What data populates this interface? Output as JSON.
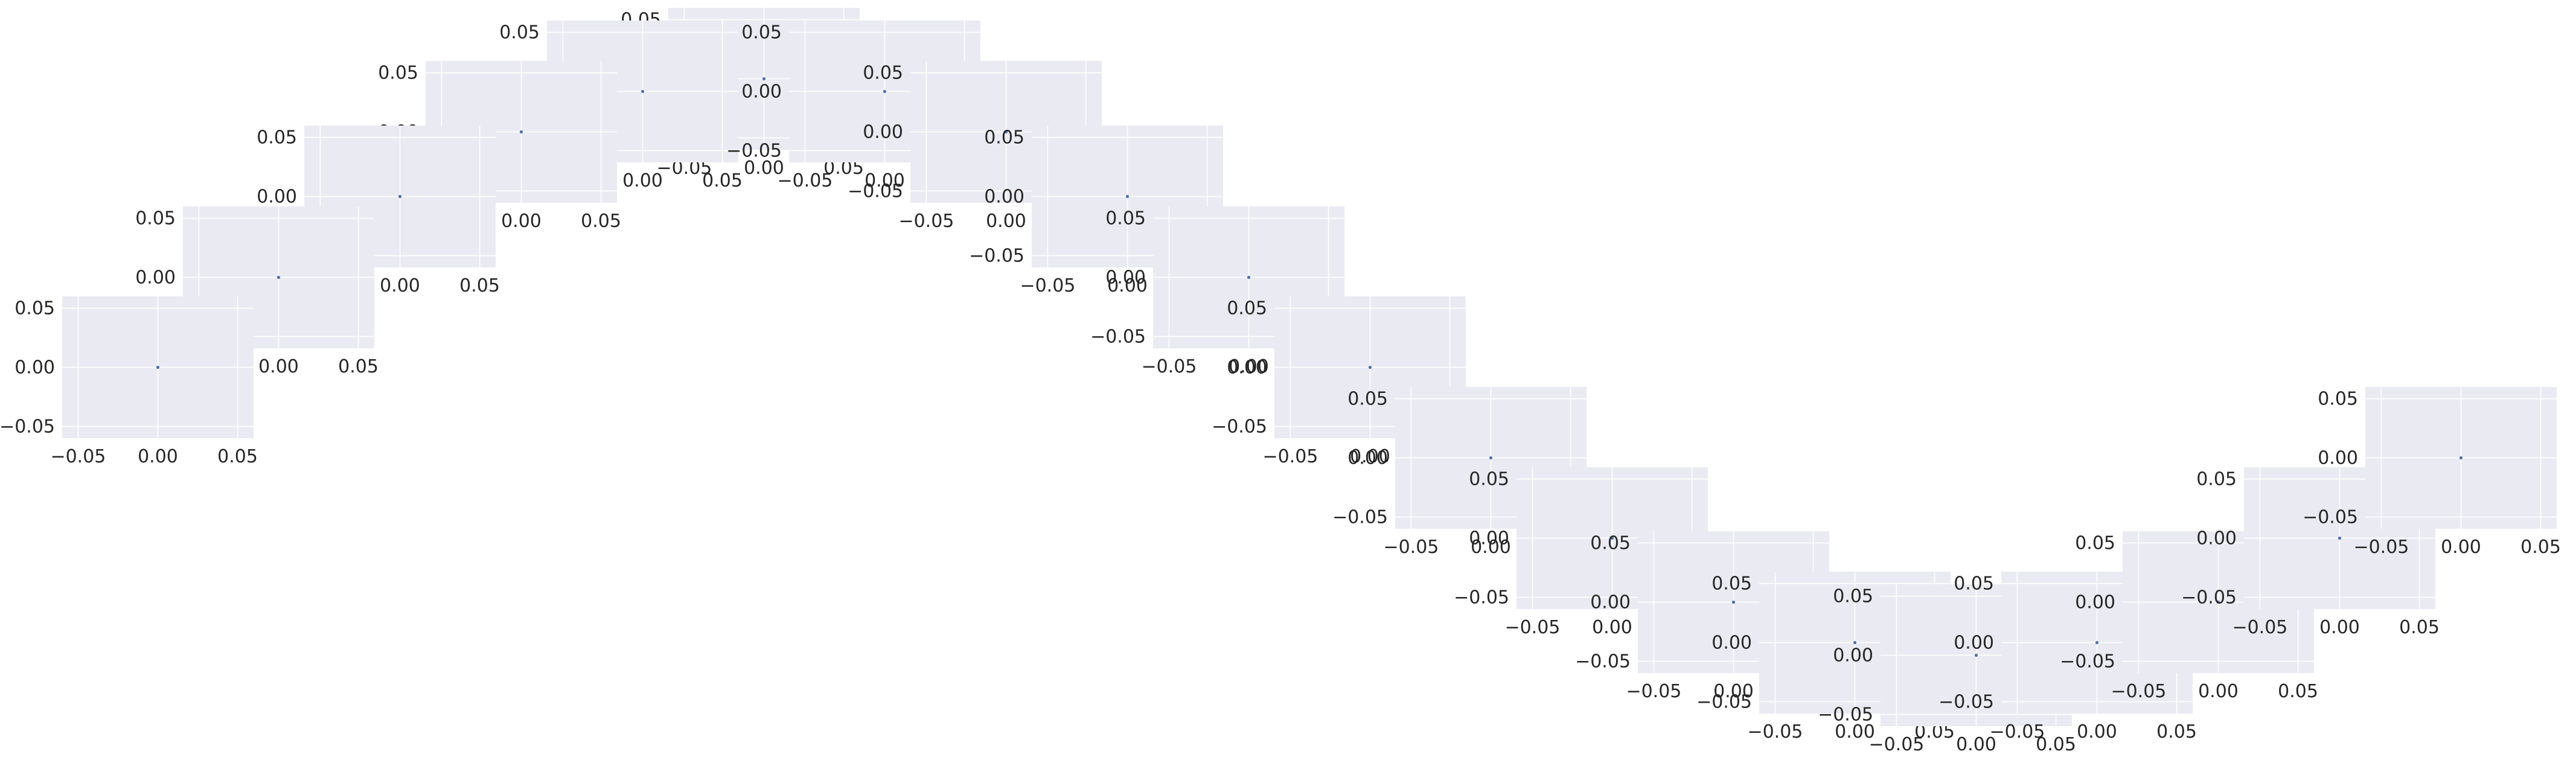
{
  "figure": {
    "background": "#ffffff"
  },
  "chart_data": {
    "type": "scatter",
    "description_style": "seaborn darkgrid small multiples, each containing a single point at (0,0)",
    "style": {
      "axes_facecolor": "#eaeaf2",
      "grid_color": "#ffffff",
      "point_color": "#4c72b0"
    },
    "shared": {
      "xlim": [
        -0.06,
        0.06
      ],
      "ylim": [
        -0.06,
        0.06
      ],
      "xticks": [
        -0.05,
        0.0,
        0.05
      ],
      "yticks": [
        -0.05,
        0.0,
        0.05
      ],
      "xtick_labels": [
        "−0.05",
        "0.00",
        "0.05"
      ],
      "ytick_labels": [
        "−0.05",
        "0.00",
        "0.05"
      ],
      "grid": true,
      "legend": "none"
    },
    "panels": [
      {
        "id": 1,
        "x": [
          0.0
        ],
        "y": [
          0.0
        ]
      },
      {
        "id": 2,
        "x": [
          0.0
        ],
        "y": [
          0.0
        ]
      },
      {
        "id": 3,
        "x": [
          0.0
        ],
        "y": [
          0.0
        ]
      },
      {
        "id": 4,
        "x": [
          0.0
        ],
        "y": [
          0.0
        ]
      },
      {
        "id": 5,
        "x": [
          0.0
        ],
        "y": [
          0.0
        ]
      },
      {
        "id": 6,
        "x": [
          0.0
        ],
        "y": [
          0.0
        ]
      },
      {
        "id": 7,
        "x": [
          0.0
        ],
        "y": [
          0.0
        ]
      },
      {
        "id": 8,
        "x": [
          0.0
        ],
        "y": [
          0.0
        ]
      },
      {
        "id": 9,
        "x": [
          0.0
        ],
        "y": [
          0.0
        ]
      },
      {
        "id": 10,
        "x": [
          0.0
        ],
        "y": [
          0.0
        ]
      },
      {
        "id": 11,
        "x": [
          0.0
        ],
        "y": [
          0.0
        ]
      },
      {
        "id": 12,
        "x": [
          0.0
        ],
        "y": [
          0.0
        ]
      },
      {
        "id": 13,
        "x": [
          0.0
        ],
        "y": [
          0.0
        ]
      },
      {
        "id": 14,
        "x": [
          0.0
        ],
        "y": [
          0.0
        ]
      },
      {
        "id": 15,
        "x": [
          0.0
        ],
        "y": [
          0.0
        ]
      },
      {
        "id": 16,
        "x": [
          0.0
        ],
        "y": [
          0.0
        ]
      },
      {
        "id": 17,
        "x": [
          0.0
        ],
        "y": [
          0.0
        ]
      },
      {
        "id": 18,
        "x": [
          0.0
        ],
        "y": [
          0.0
        ]
      },
      {
        "id": 19,
        "x": [
          0.0
        ],
        "y": [
          0.0
        ]
      },
      {
        "id": 20,
        "x": [
          0.0
        ],
        "y": [
          0.0
        ]
      },
      {
        "id": 21,
        "x": [
          0.0
        ],
        "y": [
          0.0
        ]
      }
    ]
  }
}
